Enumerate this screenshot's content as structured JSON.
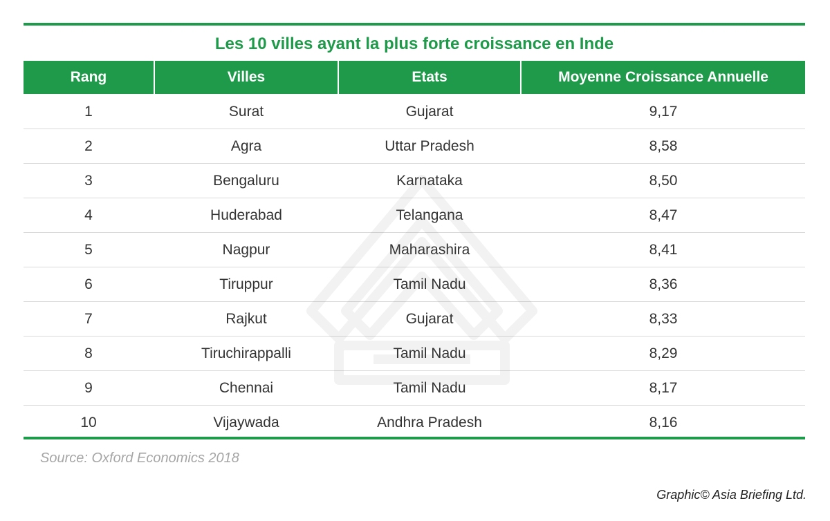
{
  "colors": {
    "accent_green": "#1e9a4a",
    "header_text": "#ffffff",
    "row_divider": "#d9d9d9",
    "source_text": "#a6a6a6"
  },
  "title": "Les 10 villes ayant la plus forte croissance en Inde",
  "source": "Source: Oxford Economics 2018",
  "credit": "Graphic© Asia Briefing Ltd.",
  "chart_data": {
    "type": "table",
    "title": "Les 10 villes ayant la plus forte croissance en Inde",
    "columns": [
      "Rang",
      "Villes",
      "Etats",
      "Moyenne Croissance Annuelle"
    ],
    "rows": [
      [
        "1",
        "Surat",
        "Gujarat",
        "9,17"
      ],
      [
        "2",
        "Agra",
        "Uttar Pradesh",
        "8,58"
      ],
      [
        "3",
        "Bengaluru",
        "Karnataka",
        "8,50"
      ],
      [
        "4",
        "Huderabad",
        "Telangana",
        "8,47"
      ],
      [
        "5",
        "Nagpur",
        "Maharashira",
        "8,41"
      ],
      [
        "6",
        "Tiruppur",
        "Tamil Nadu",
        "8,36"
      ],
      [
        "7",
        "Rajkut",
        "Gujarat",
        "8,33"
      ],
      [
        "8",
        "Tiruchirappalli",
        "Tamil Nadu",
        "8,29"
      ],
      [
        "9",
        "Chennai",
        "Tamil Nadu",
        "8,17"
      ],
      [
        "10",
        "Vijaywada",
        "Andhra Pradesh",
        "8,16"
      ]
    ]
  }
}
